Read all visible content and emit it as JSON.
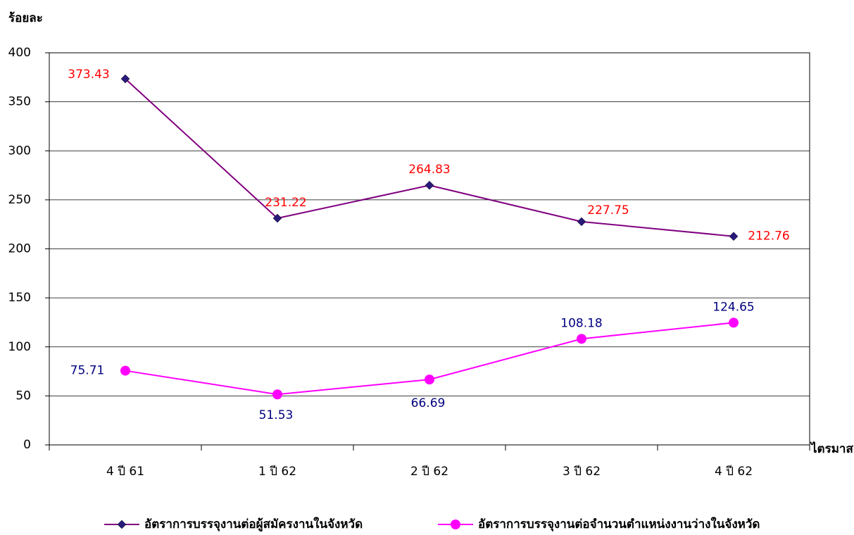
{
  "chart_data": {
    "type": "line",
    "y_label": "ร้อยละ",
    "x_label": "ไตรมาส",
    "categories": [
      "4 ปี 61",
      "1 ปี 62",
      "2 ปี 62",
      "3 ปี 62",
      "4 ปี 62"
    ],
    "series": [
      {
        "name": "อัตราการบรรจุงานต่อผู้สมัครงานในจังหวัด",
        "color": "#800080",
        "marker": "diamond",
        "marker_color": "#2a1a7a",
        "label_color": "#ff0000",
        "values": [
          373.43,
          231.22,
          264.83,
          227.75,
          212.76
        ]
      },
      {
        "name": "อัตราการบรรจุงานต่อจำนวนตำแหน่งงานว่างในจังหวัด",
        "color": "#ff00ff",
        "marker": "circle",
        "marker_color": "#ff00ff",
        "label_color": "#000080",
        "values": [
          75.71,
          51.53,
          66.69,
          108.18,
          124.65
        ]
      }
    ],
    "ylim": [
      0,
      400
    ],
    "yticks": [
      0,
      50,
      100,
      150,
      200,
      250,
      300,
      350,
      400
    ],
    "grid": true,
    "legend": "bottom"
  }
}
